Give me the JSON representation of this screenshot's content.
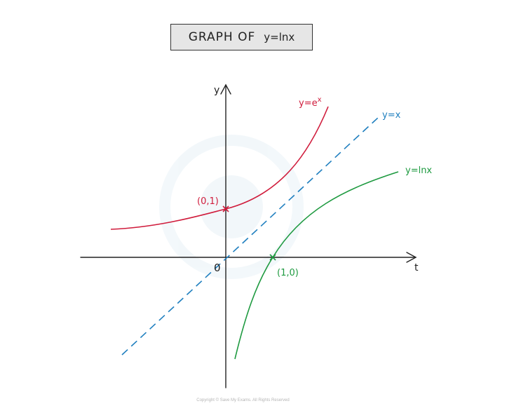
{
  "title": {
    "main": "GRAPH   OF",
    "function": "y=lnx"
  },
  "axes": {
    "x_label": "t",
    "y_label": "y",
    "origin_label": "0"
  },
  "curves": {
    "exp_label": "y=e",
    "exp_superscript": "x",
    "line_label": "y=x",
    "ln_label": "y=lnx"
  },
  "points": {
    "exp_intercept": "(0,1)",
    "ln_intercept": "(1,0)"
  },
  "colors": {
    "exp": "#d01c3c",
    "line": "#1f7fbf",
    "ln": "#1e9a40",
    "axes": "#222222"
  },
  "copyright": "Copyright © Save My Exams. All Rights Reserved"
}
